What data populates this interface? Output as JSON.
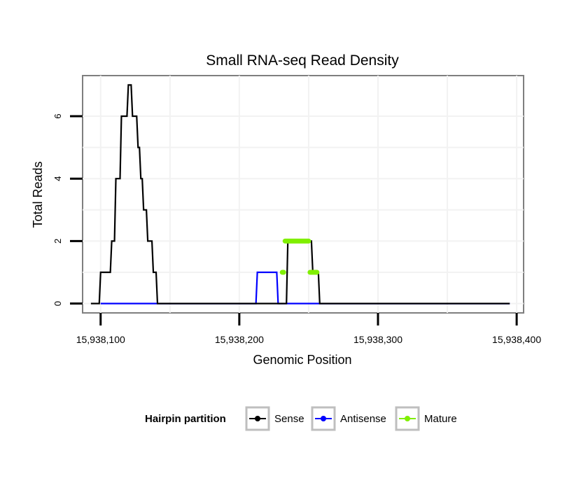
{
  "chart_data": {
    "type": "line",
    "title": "Small RNA-seq Read Density",
    "xlabel": "Genomic Position",
    "ylabel": "Total Reads",
    "xlim": [
      15938087,
      15938405
    ],
    "ylim": [
      -0.3,
      7.3
    ],
    "x_ticks": [
      15938100,
      15938200,
      15938300,
      15938400
    ],
    "x_tick_labels": [
      "15,938,100",
      "15,938,200",
      "15,938,300",
      "15,938,400"
    ],
    "y_ticks": [
      0,
      2,
      4,
      6
    ],
    "y_tick_labels": [
      "0",
      "2",
      "4",
      "6"
    ],
    "grid": true,
    "legend_title": "Hairpin partition",
    "legend_position": "bottom",
    "series": [
      {
        "name": "Sense",
        "color": "#000000",
        "x": [
          15938093,
          15938099,
          15938100,
          15938107,
          15938108,
          15938110,
          15938111,
          15938114,
          15938115,
          15938119,
          15938120,
          15938122,
          15938123,
          15938126,
          15938127,
          15938128,
          15938129,
          15938130,
          15938131,
          15938133,
          15938134,
          15938137,
          15938138,
          15938140,
          15938141,
          15938142,
          15938230,
          15938234,
          15938235,
          15938252,
          15938253,
          15938257,
          15938258,
          15938395
        ],
        "y": [
          0,
          0,
          1,
          1,
          2,
          2,
          4,
          4,
          6,
          6,
          7,
          7,
          6,
          6,
          5,
          5,
          4,
          4,
          3,
          3,
          2,
          2,
          1,
          1,
          0,
          0,
          0,
          0,
          2,
          2,
          1,
          1,
          0,
          0
        ]
      },
      {
        "name": "Antisense",
        "color": "#0000ff",
        "x": [
          15938100,
          15938212,
          15938213,
          15938227,
          15938228,
          15938395
        ],
        "y": [
          0,
          0,
          1,
          1,
          0,
          0
        ]
      },
      {
        "name": "Mature",
        "color": "#80ef00",
        "segments": [
          {
            "x": [
              15938231,
              15938232
            ],
            "y": [
              1,
              1
            ]
          },
          {
            "x": [
              15938233,
              15938250
            ],
            "y": [
              2,
              2
            ]
          },
          {
            "x": [
              15938251,
              15938256
            ],
            "y": [
              1,
              1
            ]
          }
        ]
      }
    ]
  }
}
